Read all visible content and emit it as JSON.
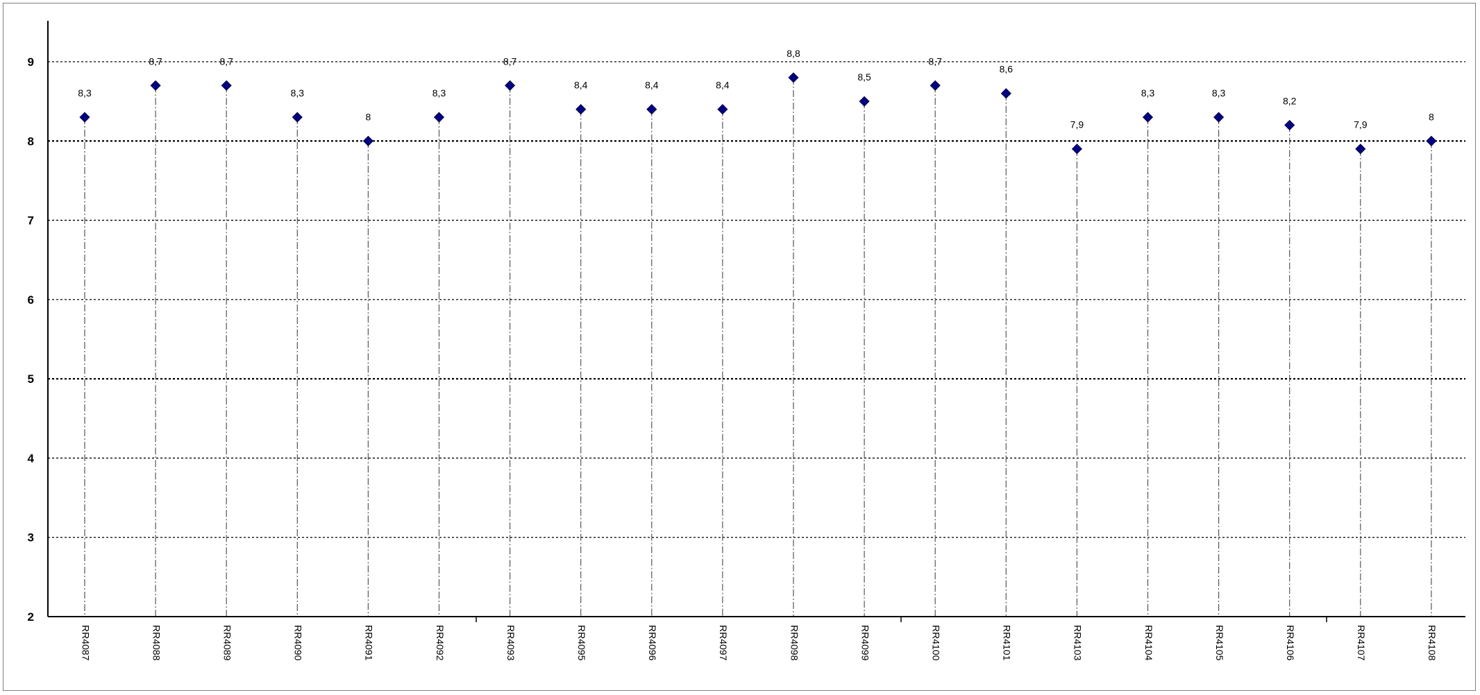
{
  "chart_data": {
    "type": "scatter",
    "title": "",
    "xlabel": "",
    "ylabel": "",
    "ylim": [
      2,
      9.5
    ],
    "yticks": [
      2,
      3,
      4,
      5,
      6,
      7,
      8,
      9
    ],
    "grid": "horizontal dotted",
    "legend": "none",
    "marker": "diamond",
    "marker_color": "#000080",
    "drop_lines": true,
    "categories": [
      "RR4087",
      "RR4088",
      "RR4089",
      "RR4090",
      "RR4091",
      "RR4092",
      "RR4093",
      "RR4095",
      "RR4096",
      "RR4097",
      "RR4098",
      "RR4099",
      "RR4100",
      "RR4101",
      "RR4103",
      "RR4104",
      "RR4105",
      "RR4106",
      "RR4107",
      "RR4108"
    ],
    "values": [
      8.3,
      8.7,
      8.7,
      8.3,
      8.0,
      8.3,
      8.7,
      8.4,
      8.4,
      8.4,
      8.8,
      8.5,
      8.7,
      8.6,
      7.9,
      8.3,
      8.3,
      8.2,
      7.9,
      8.0
    ],
    "data_labels": [
      "8,3",
      "8,7",
      "8,7",
      "8,3",
      "8",
      "8,3",
      "8,7",
      "8,4",
      "8,4",
      "8,4",
      "8,8",
      "8,5",
      "8,7",
      "8,6",
      "7,9",
      "8,3",
      "8,3",
      "8,2",
      "7,9",
      "8"
    ]
  }
}
